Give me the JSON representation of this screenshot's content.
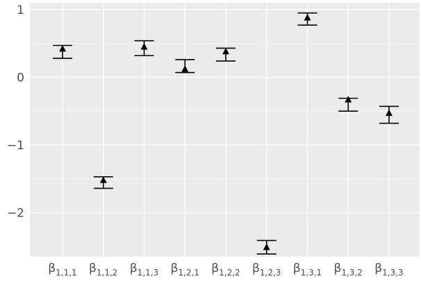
{
  "chart_data": {
    "type": "errorbar",
    "title": "",
    "xlabel": "",
    "ylabel": "",
    "grid": true,
    "ylim": [
      -2.65,
      1.1
    ],
    "yticks": [
      -2,
      -1,
      0,
      1
    ],
    "ytick_labels": [
      "−2",
      "−1",
      "0",
      "1"
    ],
    "categories": [
      {
        "base": "β",
        "sub": "1,1,1"
      },
      {
        "base": "β",
        "sub": "1,1,2"
      },
      {
        "base": "β",
        "sub": "1,1,3"
      },
      {
        "base": "β",
        "sub": "1,2,1"
      },
      {
        "base": "β",
        "sub": "1,2,2"
      },
      {
        "base": "β",
        "sub": "1,2,3"
      },
      {
        "base": "β",
        "sub": "1,3,1"
      },
      {
        "base": "β",
        "sub": "1,3,2"
      },
      {
        "base": "β",
        "sub": "1,3,3"
      }
    ],
    "points": [
      {
        "value": 0.42,
        "lower": 0.28,
        "upper": 0.47
      },
      {
        "value": -1.52,
        "lower": -1.64,
        "upper": -1.47
      },
      {
        "value": 0.45,
        "lower": 0.32,
        "upper": 0.54
      },
      {
        "value": 0.12,
        "lower": 0.07,
        "upper": 0.26
      },
      {
        "value": 0.38,
        "lower": 0.24,
        "upper": 0.43
      },
      {
        "value": -2.51,
        "lower": -2.61,
        "upper": -2.41
      },
      {
        "value": 0.88,
        "lower": 0.77,
        "upper": 0.95
      },
      {
        "value": -0.33,
        "lower": -0.5,
        "upper": -0.31
      },
      {
        "value": -0.53,
        "lower": -0.68,
        "upper": -0.43
      }
    ],
    "colors": {
      "panel": "#ebebeb",
      "grid_major": "#ffffff",
      "grid_minor": "#f5f5f5",
      "mark": "#000000",
      "tick": "#4d4d4d"
    }
  }
}
